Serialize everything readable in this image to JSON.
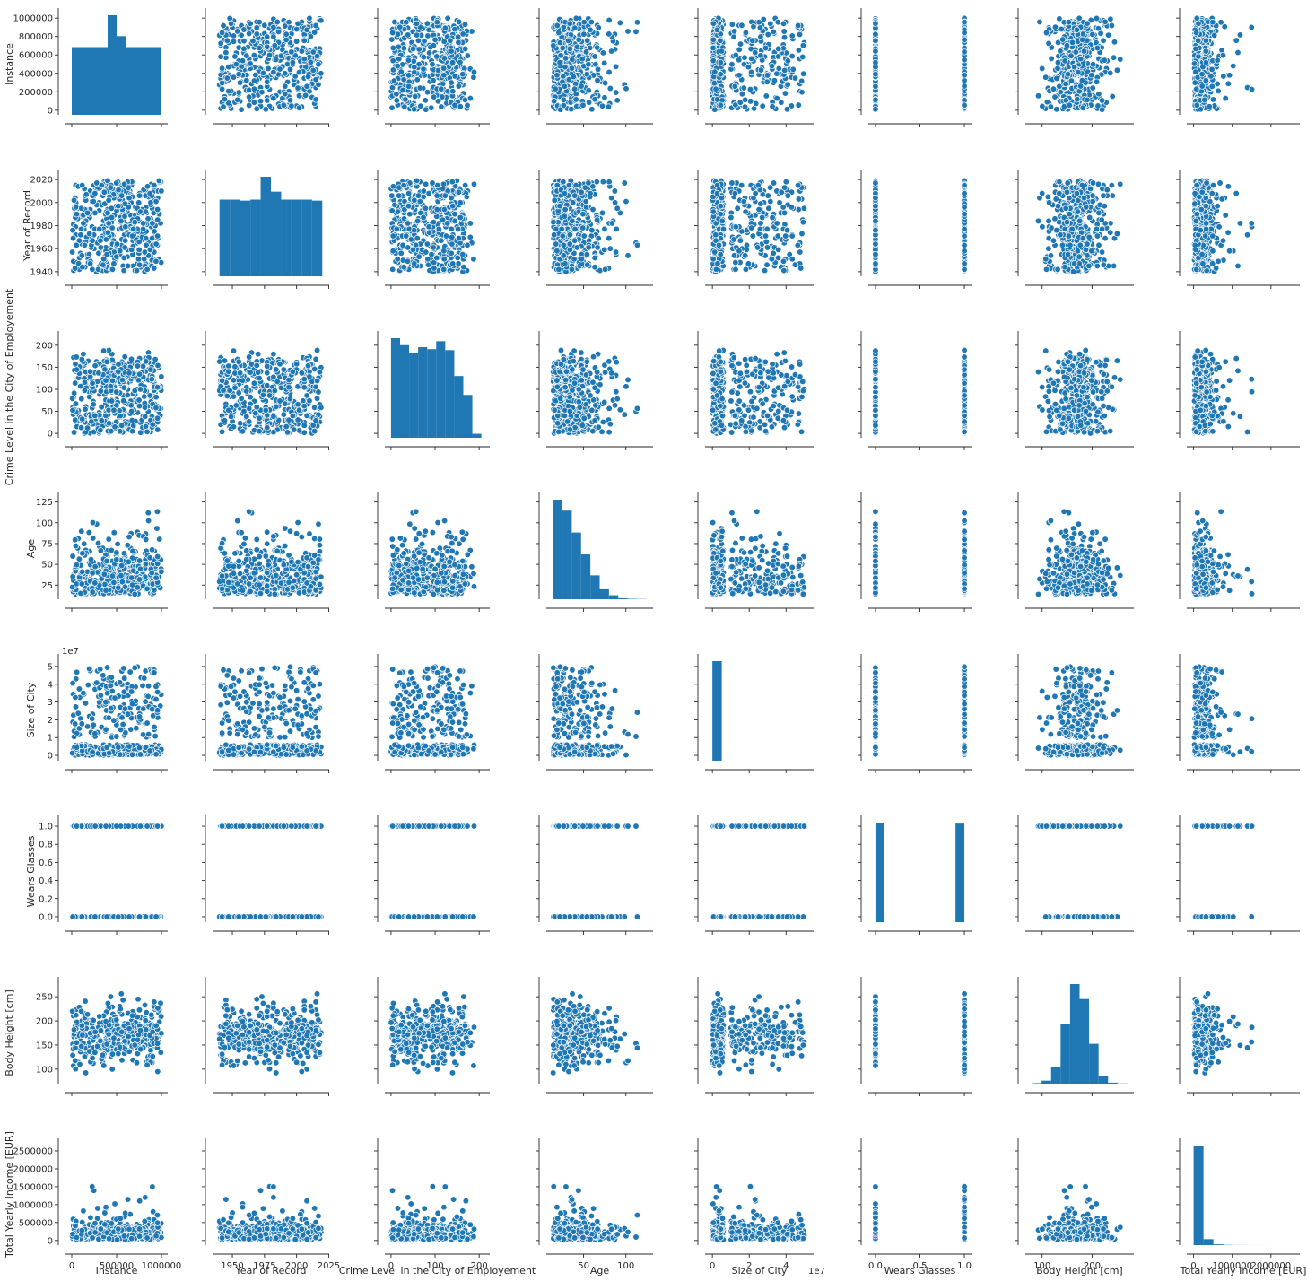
{
  "chart_data": {
    "type": "scatter",
    "kind": "pairplot",
    "color": "#1f77b4",
    "marker_edge": "#ffffff",
    "grid": false,
    "legend": null,
    "variables": [
      {
        "label": "Instance",
        "range": [
          -50000,
          1050000
        ],
        "ticks": [
          0,
          200000,
          400000,
          600000,
          800000,
          1000000
        ],
        "tick_labels": [
          "0",
          "200000",
          "400000",
          "600000",
          "800000",
          "1000000"
        ],
        "xticks": [
          0,
          500000,
          1000000
        ],
        "xtick_labels": [
          "0",
          "500000",
          "1000000"
        ],
        "offset": ""
      },
      {
        "label": "Year of Record",
        "range": [
          1936,
          2024
        ],
        "ticks": [
          1940,
          1960,
          1980,
          2000,
          2020
        ],
        "tick_labels": [
          "1940",
          "1960",
          "1980",
          "2000",
          "2020"
        ],
        "xticks": [
          1950,
          1975,
          2000,
          2025
        ],
        "xtick_labels": [
          "1950",
          "1975",
          "2000",
          "2025"
        ],
        "offset": ""
      },
      {
        "label": "Crime Level in the City of Employement",
        "range": [
          -10,
          220
        ],
        "ticks": [
          0,
          50,
          100,
          150,
          200
        ],
        "tick_labels": [
          "0",
          "50",
          "100",
          "150",
          "200"
        ],
        "xticks": [
          0,
          100,
          200
        ],
        "xtick_labels": [
          "0",
          "100",
          "200"
        ],
        "offset": ""
      },
      {
        "label": "Age",
        "range": [
          8,
          130
        ],
        "ticks": [
          25,
          50,
          75,
          100,
          125
        ],
        "tick_labels": [
          "25",
          "50",
          "75",
          "100",
          "125"
        ],
        "xticks": [
          50,
          100
        ],
        "xtick_labels": [
          "50",
          "100"
        ],
        "offset": ""
      },
      {
        "label": "Size of City",
        "range": [
          -3000000,
          54000000
        ],
        "ticks": [
          0,
          10000000,
          20000000,
          30000000,
          40000000,
          50000000
        ],
        "tick_labels": [
          "0",
          "1",
          "2",
          "3",
          "4",
          "5"
        ],
        "xticks": [
          0,
          20000000,
          40000000
        ],
        "xtick_labels": [
          "0",
          "2",
          "4"
        ],
        "offset": "1e7"
      },
      {
        "label": "Wears Glasses",
        "range": [
          -0.06,
          1.06
        ],
        "ticks": [
          0.0,
          0.2,
          0.4,
          0.6,
          0.8,
          1.0
        ],
        "tick_labels": [
          "0.0",
          "0.2",
          "0.4",
          "0.6",
          "0.8",
          "1.0"
        ],
        "xticks": [
          0.0,
          0.5,
          1.0
        ],
        "xtick_labels": [
          "0.0",
          "0.5",
          "1.0"
        ],
        "offset": ""
      },
      {
        "label": "Body Height [cm]",
        "range": [
          70,
          280
        ],
        "ticks": [
          100,
          150,
          200,
          250
        ],
        "tick_labels": [
          "100",
          "150",
          "200",
          "250"
        ],
        "xticks": [
          100,
          200
        ],
        "xtick_labels": [
          "100",
          "200"
        ],
        "offset": ""
      },
      {
        "label": "Total Yearly Income [EUR]",
        "range": [
          -130000,
          2700000
        ],
        "ticks": [
          0,
          500000,
          1000000,
          1500000,
          2000000,
          2500000
        ],
        "tick_labels": [
          "0",
          "500000",
          "1000000",
          "1500000",
          "2000000",
          "2500000"
        ],
        "xticks": [
          0,
          1000000,
          2000000
        ],
        "xtick_labels": [
          "0",
          "1000000",
          "2000000"
        ],
        "offset": ""
      }
    ],
    "histograms": [
      {
        "variable": "Instance",
        "edges": [
          0,
          100000,
          200000,
          300000,
          400000,
          500000,
          600000,
          700000,
          800000,
          900000,
          1000000
        ],
        "counts": [
          0.68,
          0.68,
          0.68,
          0.68,
          1.0,
          0.79,
          0.68,
          0.68,
          0.68,
          0.68
        ]
      },
      {
        "variable": "Year of Record",
        "edges": [
          1940,
          1948,
          1956,
          1964,
          1972,
          1980,
          1988,
          1996,
          2004,
          2012,
          2020
        ],
        "counts": [
          0.77,
          0.77,
          0.76,
          0.77,
          1.0,
          0.85,
          0.77,
          0.77,
          0.77,
          0.76
        ]
      },
      {
        "variable": "Crime Level in the City of Employement",
        "edges": [
          0,
          20.5,
          41,
          61.5,
          82,
          102.5,
          123,
          143.5,
          164,
          184.5,
          205
        ],
        "counts": [
          1.0,
          0.93,
          0.85,
          0.91,
          0.89,
          0.97,
          0.88,
          0.62,
          0.43,
          0.04
        ]
      },
      {
        "variable": "Age",
        "edges": [
          14,
          25,
          36,
          47,
          58,
          69,
          80,
          91,
          102,
          113,
          124
        ],
        "counts": [
          1.0,
          0.89,
          0.67,
          0.45,
          0.24,
          0.1,
          0.04,
          0.01,
          0.004,
          0.002
        ]
      },
      {
        "variable": "Size of City",
        "edges": [
          0,
          5100000,
          10200000,
          15300000,
          20400000,
          25500000,
          30600000,
          35700000,
          40800000,
          45900000,
          51000000
        ],
        "counts": [
          1.0,
          0,
          0,
          0,
          0,
          0,
          0,
          0,
          0,
          0
        ]
      },
      {
        "variable": "Wears Glasses",
        "edges": [
          0,
          0.1,
          0.2,
          0.3,
          0.4,
          0.5,
          0.6,
          0.7,
          0.8,
          0.9,
          1.0
        ],
        "counts": [
          1.0,
          0,
          0,
          0,
          0,
          0,
          0,
          0,
          0,
          0.99
        ]
      },
      {
        "variable": "Body Height [cm]",
        "edges": [
          80,
          99,
          118,
          137,
          156,
          175,
          194,
          213,
          232,
          251,
          270
        ],
        "counts": [
          0.005,
          0.03,
          0.17,
          0.6,
          1.0,
          0.85,
          0.4,
          0.08,
          0.01,
          0.002
        ]
      },
      {
        "variable": "Total Yearly Income [EUR]",
        "edges": [
          0,
          256000,
          512000,
          768000,
          1024000,
          1280000,
          1536000,
          1792000,
          2048000,
          2304000,
          2560000
        ],
        "counts": [
          1.0,
          0.06,
          0.008,
          0.002,
          0.001,
          0.0005,
          0.0003,
          0.0002,
          0.0001,
          0.0001
        ]
      }
    ]
  }
}
